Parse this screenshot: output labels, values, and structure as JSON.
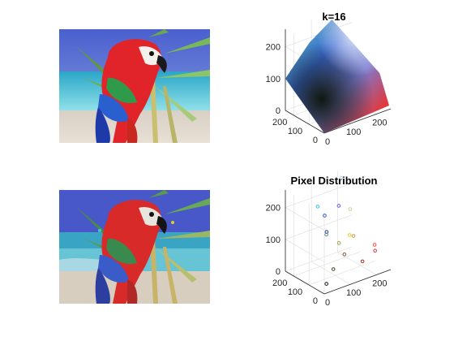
{
  "panels": {
    "original_image": {
      "name": "original-parrot-image"
    },
    "quantized_image": {
      "name": "quantized-parrot-image"
    }
  },
  "chart_data": [
    {
      "type": "scatter",
      "title": "k=16",
      "projection": "3d",
      "xlim": [
        0,
        255
      ],
      "ylim": [
        0,
        255
      ],
      "zlim": [
        0,
        255
      ],
      "x_ticks": [
        "0",
        "100",
        "200"
      ],
      "y_ticks": [
        "0",
        "100",
        "200"
      ],
      "z_ticks": [
        "0",
        "100",
        "200"
      ],
      "grid": true,
      "description_points": "dense RGB point cloud of every pixel, colored by its own color"
    },
    {
      "type": "scatter",
      "title": "Pixel Distribution",
      "projection": "3d",
      "xlim": [
        0,
        255
      ],
      "ylim": [
        0,
        255
      ],
      "zlim": [
        0,
        255
      ],
      "x_ticks": [
        "0",
        "100",
        "200"
      ],
      "y_ticks": [
        "0",
        "100",
        "200"
      ],
      "z_ticks": [
        "0",
        "100",
        "200"
      ],
      "grid": true,
      "points": [
        {
          "r": 200,
          "g": 230,
          "b": 240,
          "color": "#a8d8e8"
        },
        {
          "r": 80,
          "g": 180,
          "b": 200,
          "color": "#3ec7d6"
        },
        {
          "r": 210,
          "g": 190,
          "b": 150,
          "color": "#d8c8a0"
        },
        {
          "r": 60,
          "g": 100,
          "b": 200,
          "color": "#3a5cc8"
        },
        {
          "r": 200,
          "g": 150,
          "b": 80,
          "color": "#c89040"
        },
        {
          "r": 220,
          "g": 210,
          "b": 60,
          "color": "#e2cc30"
        },
        {
          "r": 50,
          "g": 70,
          "b": 160,
          "color": "#2c3ea0"
        },
        {
          "r": 120,
          "g": 110,
          "b": 210,
          "color": "#6a5cd6"
        },
        {
          "r": 90,
          "g": 140,
          "b": 120,
          "color": "#5a8c78"
        },
        {
          "r": 230,
          "g": 60,
          "b": 50,
          "color": "#e03a30"
        },
        {
          "r": 170,
          "g": 40,
          "b": 40,
          "color": "#b02828"
        },
        {
          "r": 240,
          "g": 80,
          "b": 60,
          "color": "#f04838"
        },
        {
          "r": 130,
          "g": 90,
          "b": 60,
          "color": "#80583a"
        },
        {
          "r": 70,
          "g": 60,
          "b": 40,
          "color": "#483c28"
        },
        {
          "r": 20,
          "g": 20,
          "b": 20,
          "color": "#141414"
        },
        {
          "r": 150,
          "g": 160,
          "b": 70,
          "color": "#98a040"
        }
      ]
    }
  ]
}
